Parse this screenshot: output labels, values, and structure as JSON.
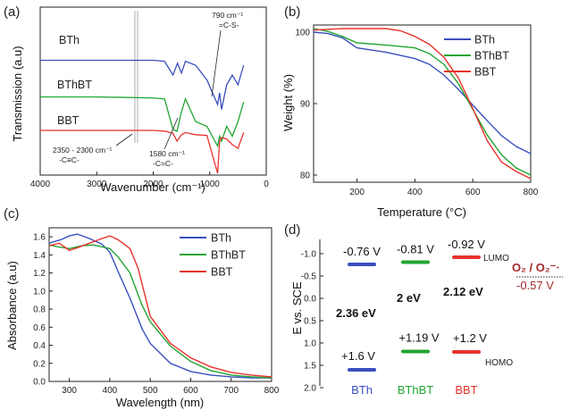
{
  "panels": {
    "a": "(a)",
    "b": "(b)",
    "c": "(c)",
    "d": "(d)"
  },
  "colors": {
    "BTh": "#3a4fbf",
    "BThBT": "#21a532",
    "BBT": "#e8322c",
    "redox": "#a52a2a"
  },
  "chart_data": [
    {
      "type": "line",
      "panel": "(a)",
      "xlabel": "Wavenumber (cm⁻¹)",
      "ylabel": "Transmission (a.u)",
      "xlim": [
        4000,
        400
      ],
      "x_ticks": [
        "4000",
        "3000",
        "2000",
        "1000",
        "0"
      ],
      "series": [
        {
          "name": "BTh",
          "points": [
            [
              4000,
              0.5
            ],
            [
              3000,
              0.5
            ],
            [
              2000,
              0.5
            ],
            [
              1800,
              0.4
            ],
            [
              1650,
              -1
            ],
            [
              1570,
              0.2
            ],
            [
              1500,
              -0.8
            ],
            [
              1430,
              0.4
            ],
            [
              1250,
              0
            ],
            [
              1050,
              -1.5
            ],
            [
              860,
              -4
            ],
            [
              825,
              -2.8
            ],
            [
              790,
              -4.5
            ],
            [
              700,
              -2
            ],
            [
              600,
              -1
            ],
            [
              500,
              -2
            ],
            [
              400,
              0
            ]
          ]
        },
        {
          "name": "BThBT",
          "points": [
            [
              4000,
              0.5
            ],
            [
              3000,
              0.5
            ],
            [
              2000,
              0.4
            ],
            [
              1800,
              0.3
            ],
            [
              1650,
              -2.8
            ],
            [
              1580,
              -3
            ],
            [
              1500,
              -1
            ],
            [
              1430,
              0.3
            ],
            [
              1250,
              -2
            ],
            [
              1050,
              -2.5
            ],
            [
              860,
              -4.5
            ],
            [
              825,
              -3.5
            ],
            [
              790,
              -4
            ],
            [
              700,
              -2.5
            ],
            [
              600,
              -3.5
            ],
            [
              500,
              -2
            ],
            [
              400,
              0
            ]
          ]
        },
        {
          "name": "BBT",
          "points": [
            [
              4000,
              0
            ],
            [
              3000,
              0
            ],
            [
              2000,
              0
            ],
            [
              1800,
              -0.1
            ],
            [
              1650,
              -0.4
            ],
            [
              1580,
              -1.5
            ],
            [
              1500,
              -0.6
            ],
            [
              1430,
              -0.3
            ],
            [
              1250,
              -0.6
            ],
            [
              1050,
              -0.7
            ],
            [
              860,
              -6
            ],
            [
              825,
              -1.5
            ],
            [
              790,
              -1
            ],
            [
              700,
              -1.2
            ],
            [
              600,
              -2
            ],
            [
              500,
              -2.5
            ],
            [
              400,
              -0.3
            ]
          ]
        }
      ],
      "annotations": [
        "790 cm⁻¹",
        "=C-S-",
        "2350 - 2300 cm⁻¹",
        "-C≡C-",
        "1580 cm⁻¹",
        "-C=C-"
      ]
    },
    {
      "type": "line",
      "panel": "(b)",
      "xlabel": "Temperature (°C)",
      "ylabel": "Weight (%)",
      "xlim": [
        50,
        800
      ],
      "ylim": [
        79,
        101
      ],
      "x_ticks": [
        "200",
        "400",
        "600",
        "800"
      ],
      "y_ticks": [
        "80",
        "90",
        "100"
      ],
      "series": [
        {
          "name": "BTh",
          "points": [
            [
              50,
              100
            ],
            [
              100,
              99.8
            ],
            [
              150,
              99.2
            ],
            [
              200,
              97.8
            ],
            [
              300,
              97.2
            ],
            [
              400,
              96.3
            ],
            [
              450,
              95.5
            ],
            [
              500,
              94
            ],
            [
              550,
              92
            ],
            [
              600,
              89.8
            ],
            [
              650,
              87.6
            ],
            [
              700,
              85.5
            ],
            [
              750,
              84
            ],
            [
              800,
              83
            ]
          ]
        },
        {
          "name": "BThBT",
          "points": [
            [
              50,
              100.5
            ],
            [
              100,
              100.1
            ],
            [
              150,
              99.4
            ],
            [
              200,
              98.5
            ],
            [
              300,
              98.2
            ],
            [
              400,
              97.8
            ],
            [
              450,
              97
            ],
            [
              500,
              95.5
            ],
            [
              550,
              92.8
            ],
            [
              600,
              89.2
            ],
            [
              650,
              85.6
            ],
            [
              700,
              82.8
            ],
            [
              750,
              81
            ],
            [
              800,
              80
            ]
          ]
        },
        {
          "name": "BBT",
          "points": [
            [
              50,
              100.3
            ],
            [
              100,
              100.4
            ],
            [
              150,
              100.5
            ],
            [
              200,
              100.5
            ],
            [
              300,
              100.5
            ],
            [
              350,
              100.2
            ],
            [
              400,
              99.4
            ],
            [
              450,
              98.3
            ],
            [
              500,
              96.5
            ],
            [
              550,
              93.6
            ],
            [
              600,
              89.3
            ],
            [
              650,
              84.8
            ],
            [
              700,
              81.8
            ],
            [
              750,
              80.5
            ],
            [
              800,
              79.5
            ]
          ]
        }
      ]
    },
    {
      "type": "line",
      "panel": "(c)",
      "xlabel": "Wavelength (nm)",
      "ylabel": "Absorbance (a.u)",
      "xlim": [
        250,
        800
      ],
      "ylim": [
        0,
        1.7
      ],
      "x_ticks": [
        "300",
        "400",
        "500",
        "600",
        "700",
        "800"
      ],
      "y_ticks": [
        "0.0",
        "0.2",
        "0.4",
        "0.6",
        "0.8",
        "1.0",
        "1.2",
        "1.4",
        "1.6"
      ],
      "series": [
        {
          "name": "BTh",
          "points": [
            [
              250,
              1.53
            ],
            [
              280,
              1.57
            ],
            [
              300,
              1.61
            ],
            [
              320,
              1.63
            ],
            [
              350,
              1.58
            ],
            [
              380,
              1.52
            ],
            [
              400,
              1.43
            ],
            [
              420,
              1.22
            ],
            [
              450,
              0.92
            ],
            [
              480,
              0.58
            ],
            [
              500,
              0.42
            ],
            [
              550,
              0.2
            ],
            [
              600,
              0.11
            ],
            [
              650,
              0.07
            ],
            [
              700,
              0.05
            ],
            [
              750,
              0.04
            ],
            [
              800,
              0.04
            ]
          ]
        },
        {
          "name": "BThBT",
          "points": [
            [
              250,
              1.51
            ],
            [
              270,
              1.49
            ],
            [
              300,
              1.47
            ],
            [
              330,
              1.5
            ],
            [
              360,
              1.51
            ],
            [
              400,
              1.47
            ],
            [
              420,
              1.38
            ],
            [
              450,
              1.2
            ],
            [
              480,
              0.84
            ],
            [
              500,
              0.66
            ],
            [
              550,
              0.39
            ],
            [
              600,
              0.22
            ],
            [
              650,
              0.12
            ],
            [
              700,
              0.07
            ],
            [
              750,
              0.05
            ],
            [
              800,
              0.04
            ]
          ]
        },
        {
          "name": "BBT",
          "points": [
            [
              250,
              1.5
            ],
            [
              275,
              1.53
            ],
            [
              300,
              1.45
            ],
            [
              320,
              1.48
            ],
            [
              350,
              1.53
            ],
            [
              380,
              1.58
            ],
            [
              400,
              1.61
            ],
            [
              420,
              1.57
            ],
            [
              450,
              1.47
            ],
            [
              470,
              1.25
            ],
            [
              500,
              0.72
            ],
            [
              550,
              0.42
            ],
            [
              600,
              0.26
            ],
            [
              650,
              0.16
            ],
            [
              700,
              0.1
            ],
            [
              750,
              0.07
            ],
            [
              800,
              0.05
            ]
          ]
        }
      ]
    },
    {
      "type": "diagram",
      "panel": "(d)",
      "ylabel": "E vs. SCE",
      "ylim": [
        -1.25,
        2.0
      ],
      "y_ticks": [
        "-1.0",
        "-0.5",
        "0.0",
        "0.5",
        "1.0",
        "1.5",
        "2.0"
      ],
      "lumo_label": "LUMO",
      "homo_label": "HOMO",
      "materials": [
        {
          "name": "BTh",
          "lumo": -0.76,
          "homo": 1.6,
          "lumo_label": "-0.76 V",
          "homo_label": "+1.6 V",
          "gap_label": "2.36 eV"
        },
        {
          "name": "BThBT",
          "lumo": -0.81,
          "homo": 1.19,
          "lumo_label": "-0.81 V",
          "homo_label": "+1.19 V",
          "gap_label": "2 eV"
        },
        {
          "name": "BBT",
          "lumo": -0.92,
          "homo": 1.2,
          "lumo_label": "-0.92 V",
          "homo_label": "+1.2 V",
          "gap_label": "2.12 eV"
        }
      ],
      "redox": {
        "label": "O₂ / O₂⁻·",
        "value": -0.57,
        "value_label": "-0.57 V"
      }
    }
  ]
}
